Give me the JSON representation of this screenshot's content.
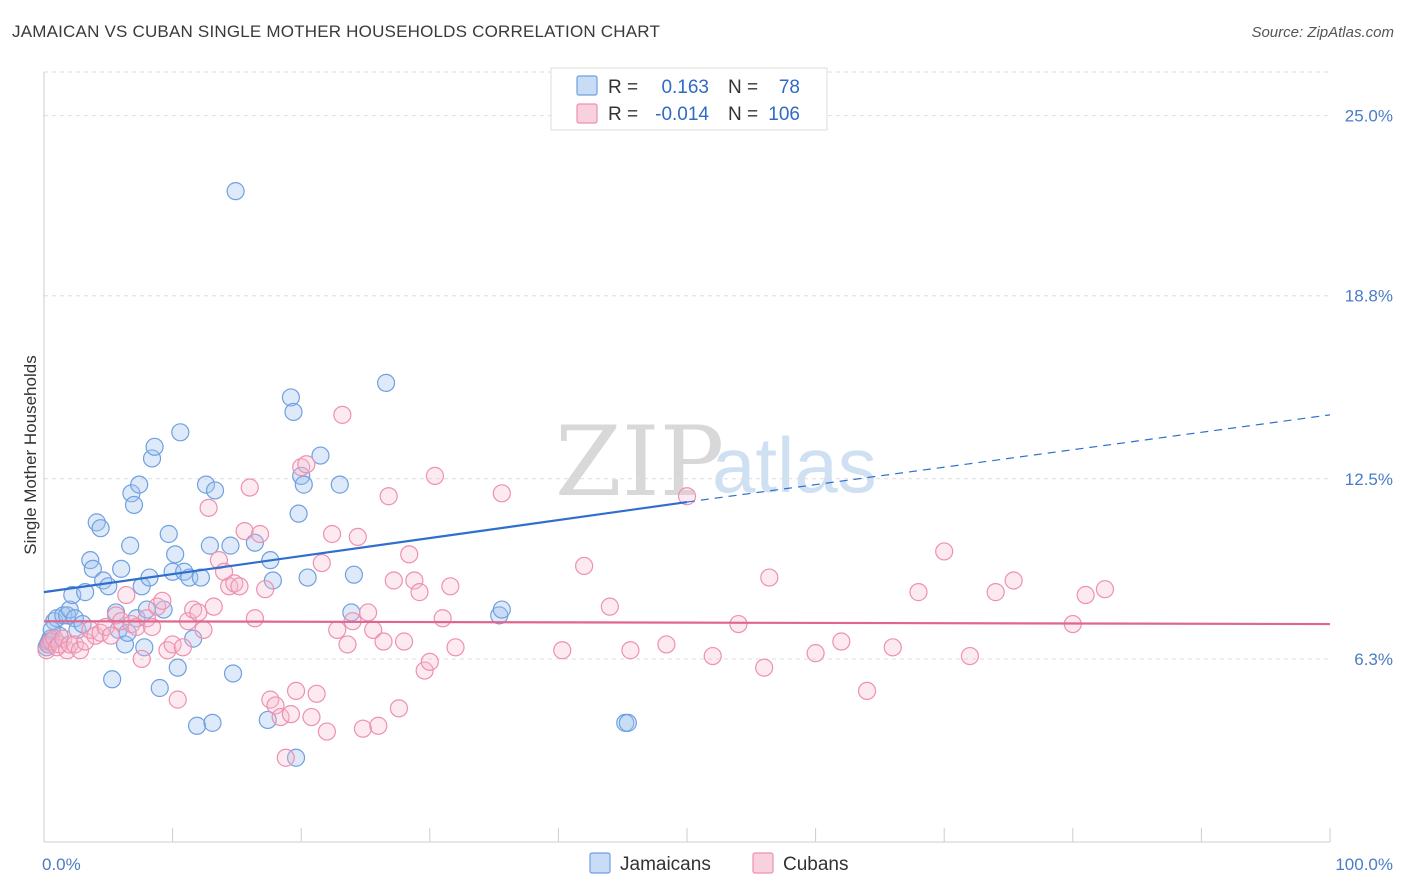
{
  "title": "JAMAICAN VS CUBAN SINGLE MOTHER HOUSEHOLDS CORRELATION CHART",
  "source": "Source: ZipAtlas.com",
  "watermark": {
    "zip": "ZIP",
    "atlas": "atlas"
  },
  "colors": {
    "jamaicans": "#6fa0e0",
    "cubans": "#ee90b0",
    "jam_line": "#2f6fcc",
    "cub_line": "#e0668e",
    "tick": "#4a7cc7"
  },
  "legend_top": {
    "rows": [
      {
        "r_label": "R =",
        "r_value": "0.163",
        "n_label": "N =",
        "n_value": "78"
      },
      {
        "r_label": "R =",
        "r_value": "-0.014",
        "n_label": "N =",
        "n_value": "106"
      }
    ]
  },
  "legend_bottom": [
    "Jamaicans",
    "Cubans"
  ],
  "chart_data": {
    "type": "scatter",
    "xlabel": "",
    "ylabel": "Single Mother Households",
    "xlim": [
      0,
      100
    ],
    "ylim": [
      0,
      26.5
    ],
    "y_ticks": [
      {
        "value": 6.3,
        "label": "6.3%"
      },
      {
        "value": 12.5,
        "label": "12.5%"
      },
      {
        "value": 18.8,
        "label": "18.8%"
      },
      {
        "value": 25.0,
        "label": "25.0%"
      }
    ],
    "x_tick_labels": [
      {
        "value": 0,
        "label": "0.0%"
      },
      {
        "value": 100,
        "label": "100.0%"
      }
    ],
    "grid": true,
    "legend_position": "top-center",
    "series": [
      {
        "name": "Jamaicans",
        "trend": {
          "x0": 0,
          "y0": 8.6,
          "x1": 50,
          "y1": 11.7,
          "dashed_to_x": 100,
          "dashed_to_y": 14.7
        },
        "points": [
          [
            0.3,
            6.8
          ],
          [
            0.5,
            7.0
          ],
          [
            0.8,
            7.6
          ],
          [
            1.0,
            7.7
          ],
          [
            1.2,
            7.1
          ],
          [
            1.5,
            7.8
          ],
          [
            1.8,
            7.8
          ],
          [
            2.0,
            8.0
          ],
          [
            2.2,
            8.5
          ],
          [
            2.4,
            7.7
          ],
          [
            2.6,
            7.3
          ],
          [
            3.0,
            7.5
          ],
          [
            3.2,
            8.6
          ],
          [
            3.6,
            9.7
          ],
          [
            3.8,
            9.4
          ],
          [
            4.1,
            11.0
          ],
          [
            4.4,
            10.8
          ],
          [
            4.6,
            9.0
          ],
          [
            5.0,
            8.8
          ],
          [
            5.3,
            5.6
          ],
          [
            5.6,
            7.9
          ],
          [
            5.8,
            7.3
          ],
          [
            6.0,
            9.4
          ],
          [
            6.3,
            6.8
          ],
          [
            6.5,
            7.2
          ],
          [
            6.7,
            10.2
          ],
          [
            6.8,
            12.0
          ],
          [
            7.0,
            11.6
          ],
          [
            7.2,
            7.7
          ],
          [
            7.4,
            12.3
          ],
          [
            7.6,
            8.8
          ],
          [
            7.8,
            6.7
          ],
          [
            8.0,
            8.0
          ],
          [
            8.2,
            9.1
          ],
          [
            8.4,
            13.2
          ],
          [
            8.6,
            13.6
          ],
          [
            9.0,
            5.3
          ],
          [
            9.3,
            8.0
          ],
          [
            9.7,
            10.6
          ],
          [
            10.0,
            9.3
          ],
          [
            10.2,
            9.9
          ],
          [
            10.4,
            6.0
          ],
          [
            10.6,
            14.1
          ],
          [
            10.9,
            9.3
          ],
          [
            11.3,
            9.1
          ],
          [
            11.6,
            7.0
          ],
          [
            11.9,
            4.0
          ],
          [
            12.2,
            9.1
          ],
          [
            12.6,
            12.3
          ],
          [
            12.9,
            10.2
          ],
          [
            13.1,
            4.1
          ],
          [
            13.3,
            12.1
          ],
          [
            14.5,
            10.2
          ],
          [
            14.9,
            22.4
          ],
          [
            14.7,
            5.8
          ],
          [
            16.4,
            10.3
          ],
          [
            17.4,
            4.2
          ],
          [
            17.6,
            9.7
          ],
          [
            17.8,
            9.0
          ],
          [
            19.2,
            15.3
          ],
          [
            19.4,
            14.8
          ],
          [
            19.6,
            2.9
          ],
          [
            19.8,
            11.3
          ],
          [
            20.0,
            12.6
          ],
          [
            20.2,
            12.3
          ],
          [
            20.5,
            9.1
          ],
          [
            21.5,
            13.3
          ],
          [
            23.0,
            12.3
          ],
          [
            23.9,
            7.9
          ],
          [
            24.1,
            9.2
          ],
          [
            26.6,
            15.8
          ],
          [
            35.4,
            7.8
          ],
          [
            35.6,
            8.0
          ],
          [
            45.2,
            4.1
          ],
          [
            45.4,
            4.1
          ],
          [
            0.2,
            6.7
          ],
          [
            0.4,
            6.9
          ],
          [
            0.6,
            7.3
          ]
        ]
      },
      {
        "name": "Cubans",
        "trend": {
          "x0": 0,
          "y0": 7.6,
          "x1": 100,
          "y1": 7.5
        },
        "points": [
          [
            0.2,
            6.6
          ],
          [
            0.4,
            6.8
          ],
          [
            0.6,
            6.9
          ],
          [
            0.8,
            7.0
          ],
          [
            1.0,
            6.7
          ],
          [
            1.2,
            6.8
          ],
          [
            1.5,
            7.0
          ],
          [
            1.8,
            6.6
          ],
          [
            2.0,
            6.8
          ],
          [
            2.4,
            6.8
          ],
          [
            2.8,
            6.6
          ],
          [
            3.2,
            6.9
          ],
          [
            3.6,
            7.3
          ],
          [
            4.0,
            7.1
          ],
          [
            4.4,
            7.2
          ],
          [
            4.8,
            7.4
          ],
          [
            5.2,
            7.1
          ],
          [
            5.6,
            7.8
          ],
          [
            6.0,
            7.6
          ],
          [
            6.4,
            8.5
          ],
          [
            6.8,
            7.5
          ],
          [
            7.2,
            7.4
          ],
          [
            7.6,
            6.3
          ],
          [
            8.0,
            7.7
          ],
          [
            8.4,
            7.4
          ],
          [
            8.8,
            8.1
          ],
          [
            9.2,
            8.3
          ],
          [
            9.6,
            6.6
          ],
          [
            10.0,
            6.8
          ],
          [
            10.4,
            4.9
          ],
          [
            10.8,
            6.7
          ],
          [
            11.2,
            7.6
          ],
          [
            11.6,
            8.0
          ],
          [
            12.0,
            7.9
          ],
          [
            12.4,
            7.3
          ],
          [
            12.8,
            11.5
          ],
          [
            13.2,
            8.1
          ],
          [
            13.6,
            9.7
          ],
          [
            14.0,
            9.3
          ],
          [
            14.4,
            8.8
          ],
          [
            14.8,
            8.9
          ],
          [
            15.2,
            8.8
          ],
          [
            15.6,
            10.7
          ],
          [
            16.0,
            12.2
          ],
          [
            16.4,
            7.7
          ],
          [
            16.8,
            10.6
          ],
          [
            17.2,
            8.7
          ],
          [
            17.6,
            4.9
          ],
          [
            18.0,
            4.7
          ],
          [
            18.4,
            4.3
          ],
          [
            18.8,
            2.9
          ],
          [
            19.2,
            4.4
          ],
          [
            19.6,
            5.2
          ],
          [
            20.0,
            12.9
          ],
          [
            20.4,
            13.0
          ],
          [
            20.8,
            4.3
          ],
          [
            21.2,
            5.1
          ],
          [
            21.6,
            9.6
          ],
          [
            22.0,
            3.8
          ],
          [
            22.4,
            10.6
          ],
          [
            22.8,
            7.3
          ],
          [
            23.2,
            14.7
          ],
          [
            23.6,
            6.8
          ],
          [
            24.0,
            7.6
          ],
          [
            24.4,
            10.5
          ],
          [
            24.8,
            3.9
          ],
          [
            25.2,
            7.9
          ],
          [
            25.6,
            7.3
          ],
          [
            26.0,
            4.0
          ],
          [
            26.4,
            6.9
          ],
          [
            26.8,
            11.9
          ],
          [
            27.2,
            9.0
          ],
          [
            27.6,
            4.6
          ],
          [
            28.0,
            6.9
          ],
          [
            28.4,
            9.9
          ],
          [
            28.8,
            9.0
          ],
          [
            29.2,
            8.6
          ],
          [
            29.6,
            5.9
          ],
          [
            30.0,
            6.2
          ],
          [
            30.4,
            12.6
          ],
          [
            31.0,
            7.7
          ],
          [
            31.6,
            8.8
          ],
          [
            32.0,
            6.7
          ],
          [
            35.6,
            12.0
          ],
          [
            40.3,
            6.6
          ],
          [
            42.0,
            9.5
          ],
          [
            44.0,
            8.1
          ],
          [
            45.6,
            6.6
          ],
          [
            48.4,
            6.8
          ],
          [
            50.0,
            11.9
          ],
          [
            52.0,
            6.4
          ],
          [
            54.0,
            7.5
          ],
          [
            56.0,
            6.0
          ],
          [
            56.4,
            9.1
          ],
          [
            60.0,
            6.5
          ],
          [
            62.0,
            6.9
          ],
          [
            64.0,
            5.2
          ],
          [
            66.0,
            6.7
          ],
          [
            68.0,
            8.6
          ],
          [
            70.0,
            10.0
          ],
          [
            72.0,
            6.4
          ],
          [
            74.0,
            8.6
          ],
          [
            75.4,
            9.0
          ],
          [
            80.0,
            7.5
          ],
          [
            81.0,
            8.5
          ],
          [
            82.5,
            8.7
          ]
        ]
      }
    ]
  }
}
